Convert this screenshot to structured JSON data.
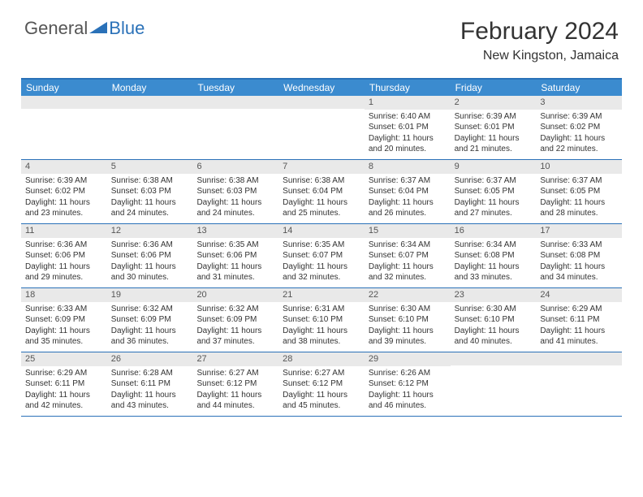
{
  "logo": {
    "general": "General",
    "blue": "Blue"
  },
  "title": {
    "month": "February 2024",
    "location": "New Kingston, Jamaica"
  },
  "colors": {
    "header_bg": "#3b8bcf",
    "border": "#2a71b8",
    "daynum_bg": "#e9e9e9",
    "text": "#333333",
    "white": "#ffffff"
  },
  "dayNames": [
    "Sunday",
    "Monday",
    "Tuesday",
    "Wednesday",
    "Thursday",
    "Friday",
    "Saturday"
  ],
  "weeks": [
    [
      {
        "num": "",
        "sunrise": "",
        "sunset": "",
        "daylight": ""
      },
      {
        "num": "",
        "sunrise": "",
        "sunset": "",
        "daylight": ""
      },
      {
        "num": "",
        "sunrise": "",
        "sunset": "",
        "daylight": ""
      },
      {
        "num": "",
        "sunrise": "",
        "sunset": "",
        "daylight": ""
      },
      {
        "num": "1",
        "sunrise": "Sunrise: 6:40 AM",
        "sunset": "Sunset: 6:01 PM",
        "daylight": "Daylight: 11 hours and 20 minutes."
      },
      {
        "num": "2",
        "sunrise": "Sunrise: 6:39 AM",
        "sunset": "Sunset: 6:01 PM",
        "daylight": "Daylight: 11 hours and 21 minutes."
      },
      {
        "num": "3",
        "sunrise": "Sunrise: 6:39 AM",
        "sunset": "Sunset: 6:02 PM",
        "daylight": "Daylight: 11 hours and 22 minutes."
      }
    ],
    [
      {
        "num": "4",
        "sunrise": "Sunrise: 6:39 AM",
        "sunset": "Sunset: 6:02 PM",
        "daylight": "Daylight: 11 hours and 23 minutes."
      },
      {
        "num": "5",
        "sunrise": "Sunrise: 6:38 AM",
        "sunset": "Sunset: 6:03 PM",
        "daylight": "Daylight: 11 hours and 24 minutes."
      },
      {
        "num": "6",
        "sunrise": "Sunrise: 6:38 AM",
        "sunset": "Sunset: 6:03 PM",
        "daylight": "Daylight: 11 hours and 24 minutes."
      },
      {
        "num": "7",
        "sunrise": "Sunrise: 6:38 AM",
        "sunset": "Sunset: 6:04 PM",
        "daylight": "Daylight: 11 hours and 25 minutes."
      },
      {
        "num": "8",
        "sunrise": "Sunrise: 6:37 AM",
        "sunset": "Sunset: 6:04 PM",
        "daylight": "Daylight: 11 hours and 26 minutes."
      },
      {
        "num": "9",
        "sunrise": "Sunrise: 6:37 AM",
        "sunset": "Sunset: 6:05 PM",
        "daylight": "Daylight: 11 hours and 27 minutes."
      },
      {
        "num": "10",
        "sunrise": "Sunrise: 6:37 AM",
        "sunset": "Sunset: 6:05 PM",
        "daylight": "Daylight: 11 hours and 28 minutes."
      }
    ],
    [
      {
        "num": "11",
        "sunrise": "Sunrise: 6:36 AM",
        "sunset": "Sunset: 6:06 PM",
        "daylight": "Daylight: 11 hours and 29 minutes."
      },
      {
        "num": "12",
        "sunrise": "Sunrise: 6:36 AM",
        "sunset": "Sunset: 6:06 PM",
        "daylight": "Daylight: 11 hours and 30 minutes."
      },
      {
        "num": "13",
        "sunrise": "Sunrise: 6:35 AM",
        "sunset": "Sunset: 6:06 PM",
        "daylight": "Daylight: 11 hours and 31 minutes."
      },
      {
        "num": "14",
        "sunrise": "Sunrise: 6:35 AM",
        "sunset": "Sunset: 6:07 PM",
        "daylight": "Daylight: 11 hours and 32 minutes."
      },
      {
        "num": "15",
        "sunrise": "Sunrise: 6:34 AM",
        "sunset": "Sunset: 6:07 PM",
        "daylight": "Daylight: 11 hours and 32 minutes."
      },
      {
        "num": "16",
        "sunrise": "Sunrise: 6:34 AM",
        "sunset": "Sunset: 6:08 PM",
        "daylight": "Daylight: 11 hours and 33 minutes."
      },
      {
        "num": "17",
        "sunrise": "Sunrise: 6:33 AM",
        "sunset": "Sunset: 6:08 PM",
        "daylight": "Daylight: 11 hours and 34 minutes."
      }
    ],
    [
      {
        "num": "18",
        "sunrise": "Sunrise: 6:33 AM",
        "sunset": "Sunset: 6:09 PM",
        "daylight": "Daylight: 11 hours and 35 minutes."
      },
      {
        "num": "19",
        "sunrise": "Sunrise: 6:32 AM",
        "sunset": "Sunset: 6:09 PM",
        "daylight": "Daylight: 11 hours and 36 minutes."
      },
      {
        "num": "20",
        "sunrise": "Sunrise: 6:32 AM",
        "sunset": "Sunset: 6:09 PM",
        "daylight": "Daylight: 11 hours and 37 minutes."
      },
      {
        "num": "21",
        "sunrise": "Sunrise: 6:31 AM",
        "sunset": "Sunset: 6:10 PM",
        "daylight": "Daylight: 11 hours and 38 minutes."
      },
      {
        "num": "22",
        "sunrise": "Sunrise: 6:30 AM",
        "sunset": "Sunset: 6:10 PM",
        "daylight": "Daylight: 11 hours and 39 minutes."
      },
      {
        "num": "23",
        "sunrise": "Sunrise: 6:30 AM",
        "sunset": "Sunset: 6:10 PM",
        "daylight": "Daylight: 11 hours and 40 minutes."
      },
      {
        "num": "24",
        "sunrise": "Sunrise: 6:29 AM",
        "sunset": "Sunset: 6:11 PM",
        "daylight": "Daylight: 11 hours and 41 minutes."
      }
    ],
    [
      {
        "num": "25",
        "sunrise": "Sunrise: 6:29 AM",
        "sunset": "Sunset: 6:11 PM",
        "daylight": "Daylight: 11 hours and 42 minutes."
      },
      {
        "num": "26",
        "sunrise": "Sunrise: 6:28 AM",
        "sunset": "Sunset: 6:11 PM",
        "daylight": "Daylight: 11 hours and 43 minutes."
      },
      {
        "num": "27",
        "sunrise": "Sunrise: 6:27 AM",
        "sunset": "Sunset: 6:12 PM",
        "daylight": "Daylight: 11 hours and 44 minutes."
      },
      {
        "num": "28",
        "sunrise": "Sunrise: 6:27 AM",
        "sunset": "Sunset: 6:12 PM",
        "daylight": "Daylight: 11 hours and 45 minutes."
      },
      {
        "num": "29",
        "sunrise": "Sunrise: 6:26 AM",
        "sunset": "Sunset: 6:12 PM",
        "daylight": "Daylight: 11 hours and 46 minutes."
      },
      {
        "num": "",
        "sunrise": "",
        "sunset": "",
        "daylight": ""
      },
      {
        "num": "",
        "sunrise": "",
        "sunset": "",
        "daylight": ""
      }
    ]
  ]
}
